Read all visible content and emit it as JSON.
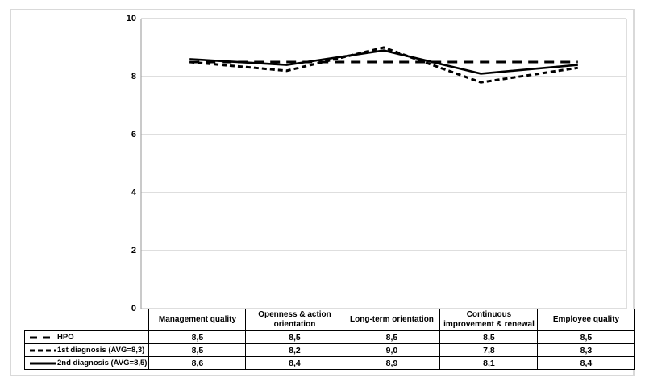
{
  "figure": {
    "background": "#ffffff",
    "frame_color": "#d9d9d9"
  },
  "chart_data": {
    "type": "line",
    "title": "",
    "xlabel": "",
    "ylabel": "",
    "categories": [
      "Management quality",
      "Openness & action orientation",
      "Long-term orientation",
      "Continuous improvement & renewal",
      "Employee quality"
    ],
    "series": [
      {
        "name": "HPO",
        "line_style": "long-dash",
        "values": [
          8.5,
          8.5,
          8.5,
          8.5,
          8.5
        ],
        "labels": [
          "8,5",
          "8,5",
          "8,5",
          "8,5",
          "8,5"
        ]
      },
      {
        "name": "1st diagnosis (AVG=8,3)",
        "line_style": "short-dash",
        "values": [
          8.5,
          8.2,
          9.0,
          7.8,
          8.3
        ],
        "labels": [
          "8,5",
          "8,2",
          "9,0",
          "7,8",
          "8,3"
        ]
      },
      {
        "name": "2nd diagnosis (AVG=8,5)",
        "line_style": "solid",
        "values": [
          8.6,
          8.4,
          8.9,
          8.1,
          8.4
        ],
        "labels": [
          "8,6",
          "8,4",
          "8,9",
          "8,1",
          "8,4"
        ]
      }
    ],
    "ylim": [
      0,
      10
    ],
    "yticks": [
      10,
      8,
      6,
      4,
      2,
      0
    ],
    "ytick_labels": [
      "10",
      "8",
      "6",
      "4",
      "2",
      "0"
    ],
    "grid": true,
    "legend_position": "left column of data table below plot",
    "colors": {
      "line": "#000000",
      "gridline": "#c9c9c9",
      "axis": "#a6a6a6",
      "table_border": "#000000",
      "text": "#000000"
    }
  },
  "table": {
    "column_headers": [
      "Management quality",
      "Openness & action orientation",
      "Long-term orientation",
      "Continuous improvement & renewal",
      "Employee quality"
    ],
    "rows": [
      {
        "legend": "HPO",
        "line_style": "long-dash",
        "cells": [
          "8,5",
          "8,5",
          "8,5",
          "8,5",
          "8,5"
        ]
      },
      {
        "legend": "1st diagnosis (AVG=8,3)",
        "line_style": "short-dash",
        "cells": [
          "8,5",
          "8,2",
          "9,0",
          "7,8",
          "8,3"
        ]
      },
      {
        "legend": "2nd diagnosis (AVG=8,5)",
        "line_style": "solid",
        "cells": [
          "8,6",
          "8,4",
          "8,9",
          "8,1",
          "8,4"
        ]
      }
    ]
  }
}
